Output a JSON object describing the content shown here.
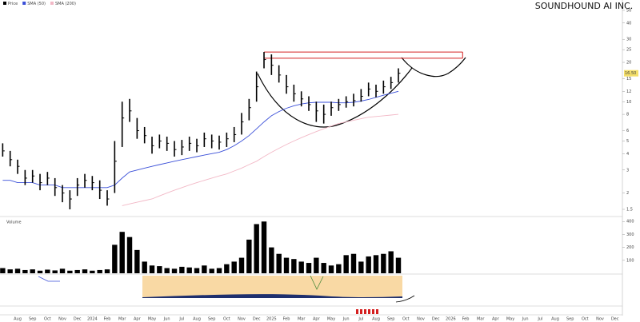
{
  "chart_data": {
    "type": "ohlc",
    "title": "SOUNDHOUND AI INC.",
    "categories": [
      "Aug",
      "Sep",
      "Oct",
      "Nov",
      "Dec",
      "2024",
      "Feb",
      "Mar",
      "Apr",
      "May",
      "Jun",
      "Jul",
      "Aug",
      "Sep",
      "Oct",
      "Nov",
      "Dec",
      "2025",
      "Feb",
      "Mar",
      "Apr",
      "May",
      "Jun",
      "Jul",
      "Aug",
      "Sep",
      "Oct",
      "Nov",
      "Dec",
      "2026",
      "Feb",
      "Mar",
      "Apr",
      "May",
      "Jun",
      "Jul",
      "Aug",
      "Sep",
      "Oct",
      "Nov",
      "Dec"
    ],
    "x": [
      -1,
      -0.5,
      0,
      0.5,
      1,
      1.5,
      2,
      2.5,
      3,
      3.5,
      4,
      4.5,
      5,
      5.5,
      6,
      6.5,
      7,
      7.5,
      8,
      8.5,
      9,
      9.5,
      10,
      10.5,
      11,
      11.5,
      12,
      12.5,
      13,
      13.5,
      14,
      14.5,
      15,
      15.5,
      16,
      16.5,
      17,
      17.5,
      18,
      18.5,
      19,
      19.5,
      20,
      20.5,
      21,
      21.5,
      22,
      22.5,
      23,
      23.5,
      24,
      24.5,
      25,
      25.5
    ],
    "xlim": [
      -1.18,
      40.5
    ],
    "log_scale": true,
    "ylim": [
      1.34,
      60
    ],
    "yticks": [
      1.5,
      2,
      3,
      4,
      5,
      6,
      8,
      10,
      12,
      15,
      20,
      25,
      30,
      40,
      50
    ],
    "series": [
      {
        "name": "Price",
        "color": "#000000",
        "high": [
          4.8,
          4.2,
          3.6,
          3.0,
          3.0,
          2.8,
          2.9,
          2.6,
          2.3,
          2.1,
          2.6,
          2.8,
          2.7,
          2.5,
          2.1,
          5.0,
          10,
          10.5,
          7.5,
          6.4,
          5.4,
          5.6,
          5.4,
          5.0,
          5.1,
          5.4,
          5.2,
          5.8,
          5.6,
          5.5,
          5.8,
          6.4,
          8.2,
          10.5,
          17,
          24,
          23,
          19,
          16,
          13.5,
          12,
          11,
          10,
          9.5,
          10,
          10.5,
          11,
          11.5,
          12.5,
          14,
          13.5,
          14.5,
          15.5,
          18
        ],
        "low": [
          3.8,
          3.2,
          2.8,
          2.3,
          2.4,
          2.1,
          2.3,
          1.9,
          1.7,
          1.5,
          1.9,
          2.2,
          2.1,
          1.8,
          1.6,
          2.0,
          4.5,
          7.0,
          5.2,
          4.8,
          4.0,
          4.4,
          4.2,
          3.8,
          3.9,
          4.2,
          4.1,
          4.5,
          4.4,
          4.3,
          4.5,
          4.9,
          5.6,
          7.2,
          10,
          18,
          16,
          14,
          11.5,
          10,
          9.2,
          8.5,
          7.0,
          6.8,
          7.8,
          8.5,
          9,
          9.2,
          10,
          11,
          10.8,
          11.5,
          12.5,
          14
        ],
        "values": [
          4.2,
          3.6,
          3.2,
          2.6,
          2.7,
          2.4,
          2.6,
          2.2,
          2.0,
          1.8,
          2.3,
          2.5,
          2.4,
          2.1,
          1.8,
          3.5,
          7.5,
          8.5,
          6.0,
          5.5,
          4.6,
          5.0,
          4.8,
          4.3,
          4.5,
          4.8,
          4.6,
          5.2,
          5.0,
          4.9,
          5.2,
          5.6,
          7.0,
          9.0,
          13,
          21,
          19,
          16,
          13,
          11.5,
          10.5,
          9.5,
          8.5,
          8.0,
          9.0,
          9.5,
          10,
          10.2,
          11,
          12.5,
          12,
          13,
          14,
          16.5
        ]
      },
      {
        "name": "SMA (50)",
        "color": "#3a4fd8",
        "values": [
          2.5,
          2.5,
          2.4,
          2.4,
          2.4,
          2.3,
          2.3,
          2.3,
          2.2,
          2.2,
          2.2,
          2.2,
          2.2,
          2.2,
          2.2,
          2.3,
          2.6,
          2.9,
          3.0,
          3.1,
          3.2,
          3.3,
          3.4,
          3.5,
          3.6,
          3.7,
          3.8,
          3.9,
          4.0,
          4.1,
          4.3,
          4.6,
          5.0,
          5.5,
          6.2,
          7.0,
          7.8,
          8.4,
          8.9,
          9.3,
          9.6,
          9.8,
          9.9,
          9.9,
          9.9,
          9.8,
          9.8,
          9.9,
          10.1,
          10.4,
          10.8,
          11.2,
          11.6,
          12.0
        ]
      },
      {
        "name": "SMA (200)",
        "color": "#f2b8c6",
        "values": [
          null,
          null,
          null,
          null,
          null,
          null,
          null,
          null,
          null,
          null,
          null,
          null,
          null,
          null,
          null,
          null,
          1.6,
          1.65,
          1.7,
          1.75,
          1.8,
          1.9,
          2.0,
          2.1,
          2.2,
          2.3,
          2.4,
          2.5,
          2.6,
          2.7,
          2.8,
          2.95,
          3.1,
          3.3,
          3.5,
          3.8,
          4.1,
          4.4,
          4.7,
          5.0,
          5.3,
          5.6,
          5.9,
          6.2,
          6.5,
          6.8,
          7.0,
          7.2,
          7.4,
          7.6,
          7.7,
          7.8,
          7.9,
          8.0
        ]
      }
    ],
    "levels": [
      24,
      21.5
    ],
    "level_color": "#d42020",
    "last_price": {
      "value": 16.5,
      "label": "16.50"
    },
    "volume": {
      "name": "Volume",
      "color": "#000000",
      "values": [
        40,
        30,
        35,
        25,
        30,
        20,
        28,
        22,
        35,
        20,
        25,
        30,
        20,
        25,
        30,
        220,
        320,
        280,
        180,
        90,
        60,
        55,
        40,
        35,
        50,
        45,
        40,
        60,
        35,
        40,
        70,
        90,
        120,
        260,
        380,
        400,
        200,
        150,
        120,
        110,
        90,
        80,
        120,
        80,
        60,
        70,
        140,
        150,
        90,
        130,
        140,
        150,
        170,
        120
      ],
      "ylim": [
        0,
        420
      ],
      "yticks": [
        100,
        200,
        300,
        400
      ]
    }
  }
}
